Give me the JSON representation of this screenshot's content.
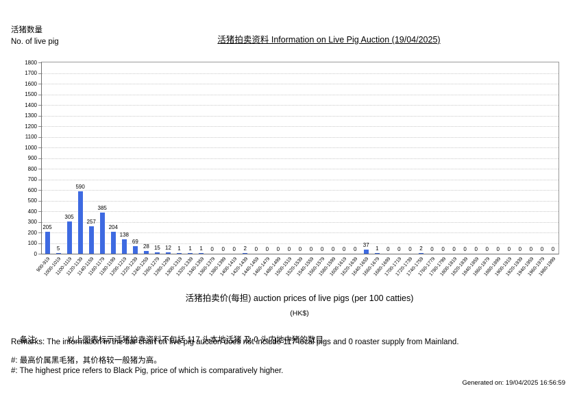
{
  "header": {
    "y_axis_label_zh": "活猪数量",
    "y_axis_label_en": "No. of live pig",
    "title": "活猪拍卖资料 Information on Live Pig Auction (19/04/2025)"
  },
  "axis": {
    "x_title": "活猪拍卖价(每担) auction prices of live pigs (per 100 catties)",
    "x_unit": "(HK$)"
  },
  "remarks": {
    "label_zh": "备注:",
    "text_zh": "以上图表标示活猪拍卖资料不包括 117 头本地活猪 及 0 头内地中猪的数目.",
    "text_en": "Remarks: The information in the bar chart on live pig auction does not include 117 local pigs and 0 roaster supply from Mainland.",
    "footnote_zh": "#: 最高价属黑毛猪，其价格较一般猪为高。",
    "footnote_en": "#: The highest price refers to Black Pig, price of which is comparatively higher.",
    "generated": "Generated on: 19/04/2025 16:56:59"
  },
  "chart_data": {
    "type": "bar",
    "title": "活猪拍卖资料 Information on Live Pig Auction (19/04/2025)",
    "xlabel": "活猪拍卖价(每担) auction prices of live pigs (per 100 catties) (HK$)",
    "ylabel": "活猪数量 No. of live pig",
    "ylim": [
      0,
      1800
    ],
    "y_tick_step": 100,
    "grid": true,
    "legend": "none",
    "bar_color": "#3e6ae1",
    "categories": [
      "900-919",
      "1000-1019",
      "1100-1119",
      "1120-1139",
      "1140-1159",
      "1160-1179",
      "1180-1199",
      "1200-1219",
      "1220-1239",
      "1240-1259",
      "1260-1279",
      "1280-1299",
      "1300-1319",
      "1320-1339",
      "1340-1359",
      "1360-1379",
      "1380-1399",
      "1400-1419",
      "1420-1439",
      "1440-1459",
      "1460-1479",
      "1480-1499",
      "1500-1519",
      "1520-1539",
      "1540-1559",
      "1560-1579",
      "1580-1599",
      "1600-1619",
      "1620-1639",
      "1640-1659",
      "1660-1679",
      "1680-1699",
      "1700-1719",
      "1720-1739",
      "1740-1759",
      "1760-1779",
      "1780-1799",
      "1800-1819",
      "1820-1839",
      "1840-1859",
      "1860-1879",
      "1880-1899",
      "1900-1919",
      "1920-1939",
      "1940-1959",
      "1960-1979",
      "1980-1999"
    ],
    "values": [
      205,
      5,
      305,
      590,
      257,
      385,
      204,
      138,
      69,
      28,
      15,
      12,
      1,
      1,
      1,
      0,
      0,
      0,
      2,
      0,
      0,
      0,
      0,
      0,
      0,
      0,
      0,
      0,
      0,
      37,
      1,
      0,
      0,
      0,
      2,
      0,
      0,
      0,
      0,
      0,
      0,
      0,
      0,
      0,
      0,
      0,
      0
    ]
  }
}
